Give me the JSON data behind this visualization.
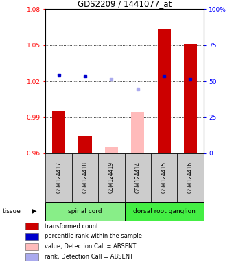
{
  "title": "GDS2209 / 1441077_at",
  "samples": [
    "GSM124417",
    "GSM124418",
    "GSM124419",
    "GSM124414",
    "GSM124415",
    "GSM124416"
  ],
  "tissue_groups": [
    {
      "label": "spinal cord",
      "color": "#88ee88"
    },
    {
      "label": "dorsal root ganglion",
      "color": "#44ee44"
    }
  ],
  "bar_values": [
    0.9953,
    0.9742,
    null,
    null,
    1.0635,
    1.051
  ],
  "bar_colors_present": "#cc0000",
  "bar_colors_absent": "#ffbbbb",
  "dot_values_present": [
    1.025,
    1.024,
    null,
    null,
    1.024,
    1.022
  ],
  "dot_colors_present": "#0000cc",
  "absent_bar_values": [
    null,
    null,
    0.965,
    0.994,
    null,
    null
  ],
  "absent_dot_values": [
    null,
    null,
    1.022,
    1.013,
    null,
    null
  ],
  "dot_absent_color": "#aaaaee",
  "ylim_left": [
    0.96,
    1.08
  ],
  "ylim_right": [
    0,
    100
  ],
  "yticks_left": [
    0.96,
    0.99,
    1.02,
    1.05,
    1.08
  ],
  "yticks_left_labels": [
    "0.96",
    "0.99",
    "1.02",
    "1.05",
    "1.08"
  ],
  "yticks_right": [
    0,
    25,
    50,
    75,
    100
  ],
  "yticks_right_labels": [
    "0",
    "25",
    "50",
    "75",
    "100%"
  ],
  "legend_items": [
    {
      "color": "#cc0000",
      "label": "transformed count"
    },
    {
      "color": "#0000cc",
      "label": "percentile rank within the sample"
    },
    {
      "color": "#ffbbbb",
      "label": "value, Detection Call = ABSENT"
    },
    {
      "color": "#aaaaee",
      "label": "rank, Detection Call = ABSENT"
    }
  ],
  "sample_box_color": "#cccccc",
  "bar_width": 0.5,
  "x_positions": [
    1,
    2,
    3,
    4,
    5,
    6
  ]
}
